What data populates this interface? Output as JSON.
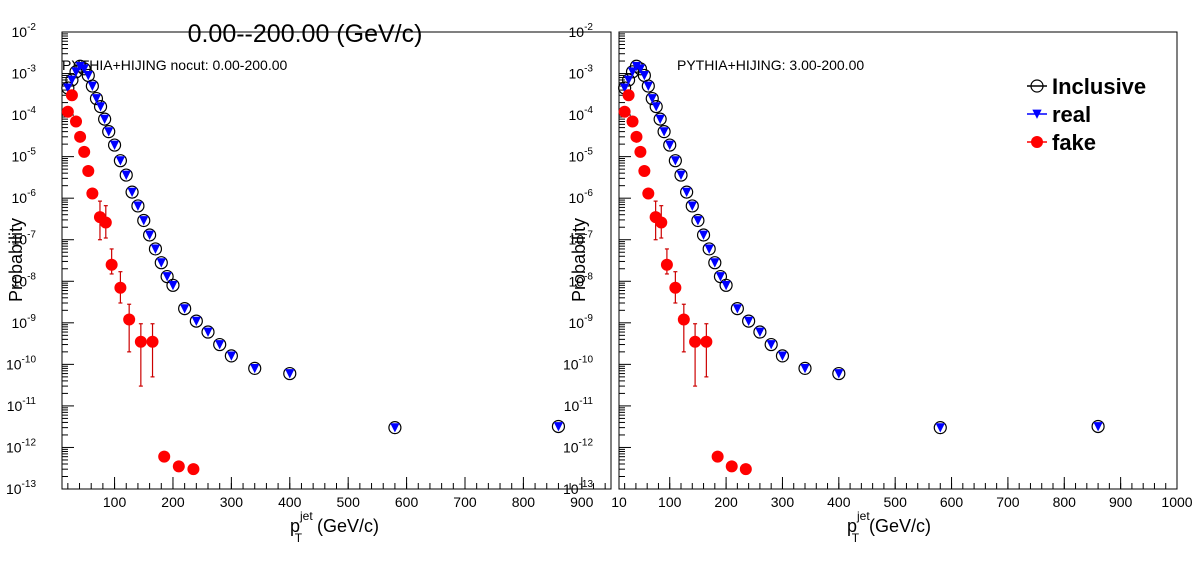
{
  "figure_title": "0.00--200.00 (GeV/c)",
  "colors": {
    "inclusive": "#000000",
    "real": "#0000ff",
    "fake": "#ff0000",
    "fake_error": "#cc0000"
  },
  "legend": {
    "entries": [
      {
        "key": "inclusive",
        "label": "Inclusive",
        "icon": "open-circle-icon"
      },
      {
        "key": "real",
        "label": "real",
        "icon": "blue-triangle-icon"
      },
      {
        "key": "fake",
        "label": "fake",
        "icon": "red-dot-icon"
      }
    ]
  },
  "chart_data": [
    {
      "type": "scatter",
      "title": "PYTHIA+HIJING nocut: 0.00-200.00",
      "xlabel_base": "p",
      "xlabel_sub": "T",
      "xlabel_sup": "jet",
      "xlabel_unit": " (GeV/c)",
      "ylabel": "Probability",
      "xlim": [
        10,
        950
      ],
      "ylim": [
        1e-13,
        0.01
      ],
      "yscale": "log",
      "xticks": [
        100,
        200,
        300,
        400,
        500,
        600,
        700,
        800,
        900
      ],
      "xtick_labels": [
        "100",
        "200",
        "300",
        "400",
        "500",
        "600",
        "700",
        "800",
        "900"
      ],
      "ytick_exponents": [
        -13,
        -12,
        -11,
        -10,
        -9,
        -8,
        -7,
        -6,
        -5,
        -4,
        -3,
        -2
      ],
      "grid": false,
      "legend": false,
      "series": [
        {
          "key": "inclusive",
          "x": [
            20,
            27,
            34,
            41,
            48,
            55,
            62,
            69,
            76,
            83,
            90,
            100,
            110,
            120,
            130,
            140,
            150,
            160,
            170,
            180,
            190,
            200,
            220,
            240,
            260,
            280,
            300,
            340,
            400,
            580,
            860
          ],
          "y": [
            0.00045,
            0.0007,
            0.0011,
            0.0015,
            0.0013,
            0.0009,
            0.0005,
            0.00025,
            0.00016,
            8e-05,
            4e-05,
            1.9e-05,
            8e-06,
            3.6e-06,
            1.4e-06,
            6.5e-07,
            2.9e-07,
            1.3e-07,
            6e-08,
            2.8e-08,
            1.3e-08,
            8e-09,
            2.2e-09,
            1.1e-09,
            6e-10,
            3e-10,
            1.6e-10,
            8e-11,
            6e-11,
            3e-12,
            3.2e-12
          ]
        },
        {
          "key": "real",
          "x": [
            20,
            27,
            34,
            41,
            48,
            55,
            62,
            69,
            76,
            83,
            90,
            100,
            110,
            120,
            130,
            140,
            150,
            160,
            170,
            180,
            190,
            200,
            220,
            240,
            260,
            280,
            300,
            340,
            400,
            580,
            860
          ],
          "y": [
            0.00045,
            0.0007,
            0.0011,
            0.0015,
            0.0013,
            0.0009,
            0.0005,
            0.00025,
            0.00016,
            8e-05,
            4e-05,
            1.9e-05,
            8e-06,
            3.6e-06,
            1.4e-06,
            6.5e-07,
            2.9e-07,
            1.3e-07,
            6e-08,
            2.8e-08,
            1.3e-08,
            8e-09,
            2.2e-09,
            1.1e-09,
            6e-10,
            3e-10,
            1.6e-10,
            8e-11,
            6e-11,
            3e-12,
            3.2e-12
          ]
        },
        {
          "key": "fake",
          "x": [
            20,
            27,
            34,
            41,
            48,
            55,
            62,
            75,
            85,
            95,
            110,
            125,
            145,
            165,
            185,
            210,
            235
          ],
          "y": [
            0.00012,
            0.0003,
            7e-05,
            3e-05,
            1.3e-05,
            4.5e-06,
            1.3e-06,
            3.5e-07,
            2.6e-07,
            2.5e-08,
            7e-09,
            1.2e-09,
            3.5e-10,
            3.5e-10,
            6e-13,
            3.5e-13,
            3e-13
          ],
          "err_low": [
            0,
            0,
            0,
            0,
            0,
            0,
            0,
            2.5e-07,
            1.5e-07,
            1e-08,
            4e-09,
            1e-09,
            3.2e-10,
            3e-10,
            0,
            0,
            0
          ],
          "err_high": [
            0,
            0,
            0,
            0,
            0,
            0,
            0,
            5e-07,
            4e-07,
            3.5e-08,
            1e-08,
            1.6e-09,
            6e-10,
            6e-10,
            0,
            0,
            0
          ]
        }
      ]
    },
    {
      "type": "scatter",
      "title": "PYTHIA+HIJING: 3.00-200.00",
      "xlabel_base": "p",
      "xlabel_sub": "T",
      "xlabel_sup": "jet",
      "xlabel_unit": "(GeV/c)",
      "ylabel": "Probability",
      "xlim": [
        10,
        1000
      ],
      "ylim": [
        1e-13,
        0.01
      ],
      "yscale": "log",
      "xticks": [
        10,
        100,
        200,
        300,
        400,
        500,
        600,
        700,
        800,
        900,
        1000
      ],
      "xtick_labels": [
        "10",
        "100",
        "200",
        "300",
        "400",
        "500",
        "600",
        "700",
        "800",
        "900",
        "1000"
      ],
      "ytick_exponents": [
        -13,
        -12,
        -11,
        -10,
        -9,
        -8,
        -7,
        -6,
        -5,
        -4,
        -3,
        -2
      ],
      "grid": false,
      "legend": "top-right",
      "series": [
        {
          "key": "inclusive",
          "x": [
            20,
            27,
            34,
            41,
            48,
            55,
            62,
            69,
            76,
            83,
            90,
            100,
            110,
            120,
            130,
            140,
            150,
            160,
            170,
            180,
            190,
            200,
            220,
            240,
            260,
            280,
            300,
            340,
            400,
            580,
            860
          ],
          "y": [
            0.00045,
            0.0007,
            0.0011,
            0.0015,
            0.0013,
            0.0009,
            0.0005,
            0.00025,
            0.00016,
            8e-05,
            4e-05,
            1.9e-05,
            8e-06,
            3.6e-06,
            1.4e-06,
            6.5e-07,
            2.9e-07,
            1.3e-07,
            6e-08,
            2.8e-08,
            1.3e-08,
            8e-09,
            2.2e-09,
            1.1e-09,
            6e-10,
            3e-10,
            1.6e-10,
            8e-11,
            6e-11,
            3e-12,
            3.2e-12
          ]
        },
        {
          "key": "real",
          "x": [
            20,
            27,
            34,
            41,
            48,
            55,
            62,
            69,
            76,
            83,
            90,
            100,
            110,
            120,
            130,
            140,
            150,
            160,
            170,
            180,
            190,
            200,
            220,
            240,
            260,
            280,
            300,
            340,
            400,
            580,
            860
          ],
          "y": [
            0.00045,
            0.0007,
            0.0011,
            0.0015,
            0.0013,
            0.0009,
            0.0005,
            0.00025,
            0.00016,
            8e-05,
            4e-05,
            1.9e-05,
            8e-06,
            3.6e-06,
            1.4e-06,
            6.5e-07,
            2.9e-07,
            1.3e-07,
            6e-08,
            2.8e-08,
            1.3e-08,
            8e-09,
            2.2e-09,
            1.1e-09,
            6e-10,
            3e-10,
            1.6e-10,
            8e-11,
            6e-11,
            3e-12,
            3.2e-12
          ]
        },
        {
          "key": "fake",
          "x": [
            20,
            27,
            34,
            41,
            48,
            55,
            62,
            75,
            85,
            95,
            110,
            125,
            145,
            165,
            185,
            210,
            235
          ],
          "y": [
            0.00012,
            0.0003,
            7e-05,
            3e-05,
            1.3e-05,
            4.5e-06,
            1.3e-06,
            3.5e-07,
            2.6e-07,
            2.5e-08,
            7e-09,
            1.2e-09,
            3.5e-10,
            3.5e-10,
            6e-13,
            3.5e-13,
            3e-13
          ],
          "err_low": [
            0,
            0,
            0,
            0,
            0,
            0,
            0,
            2.5e-07,
            1.5e-07,
            1e-08,
            4e-09,
            1e-09,
            3.2e-10,
            3e-10,
            0,
            0,
            0
          ],
          "err_high": [
            0,
            0,
            0,
            0,
            0,
            0,
            0,
            5e-07,
            4e-07,
            3.5e-08,
            1e-08,
            1.6e-09,
            6e-10,
            6e-10,
            0,
            0,
            0
          ]
        }
      ]
    }
  ]
}
